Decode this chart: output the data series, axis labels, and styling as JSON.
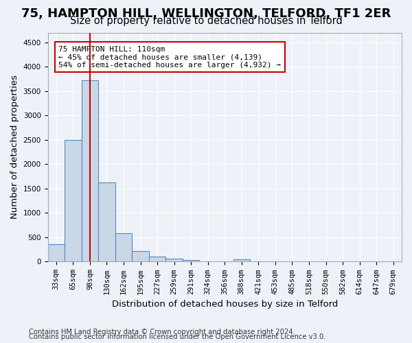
{
  "title1": "75, HAMPTON HILL, WELLINGTON, TELFORD, TF1 2ER",
  "title2": "Size of property relative to detached houses in Telford",
  "xlabel": "Distribution of detached houses by size in Telford",
  "ylabel": "Number of detached properties",
  "footnote1": "Contains HM Land Registry data © Crown copyright and database right 2024.",
  "footnote2": "Contains public sector information licensed under the Open Government Licence v3.0.",
  "bin_labels": [
    "33sqm",
    "65sqm",
    "98sqm",
    "130sqm",
    "162sqm",
    "195sqm",
    "227sqm",
    "259sqm",
    "291sqm",
    "324sqm",
    "356sqm",
    "388sqm",
    "421sqm",
    "453sqm",
    "485sqm",
    "518sqm",
    "550sqm",
    "582sqm",
    "614sqm",
    "647sqm",
    "679sqm"
  ],
  "bar_values": [
    360,
    2500,
    3720,
    1630,
    590,
    220,
    105,
    60,
    40,
    0,
    0,
    55,
    0,
    0,
    0,
    0,
    0,
    0,
    0,
    0,
    0
  ],
  "bar_color": "#c8d8e8",
  "bar_edge_color": "#5588bb",
  "red_line_bin": 2,
  "red_line_color": "#cc0000",
  "annotation_text": "75 HAMPTON HILL: 110sqm\n← 45% of detached houses are smaller (4,139)\n54% of semi-detached houses are larger (4,932) →",
  "annotation_box_color": "#ffffff",
  "annotation_box_edge": "#cc0000",
  "ylim": [
    0,
    4700
  ],
  "yticks": [
    0,
    500,
    1000,
    1500,
    2000,
    2500,
    3000,
    3500,
    4000,
    4500
  ],
  "background_color": "#eef2f8",
  "grid_color": "#ffffff",
  "title1_fontsize": 13,
  "title2_fontsize": 10.5,
  "axis_label_fontsize": 9.5,
  "tick_fontsize": 7.5,
  "footnote_fontsize": 7.2
}
